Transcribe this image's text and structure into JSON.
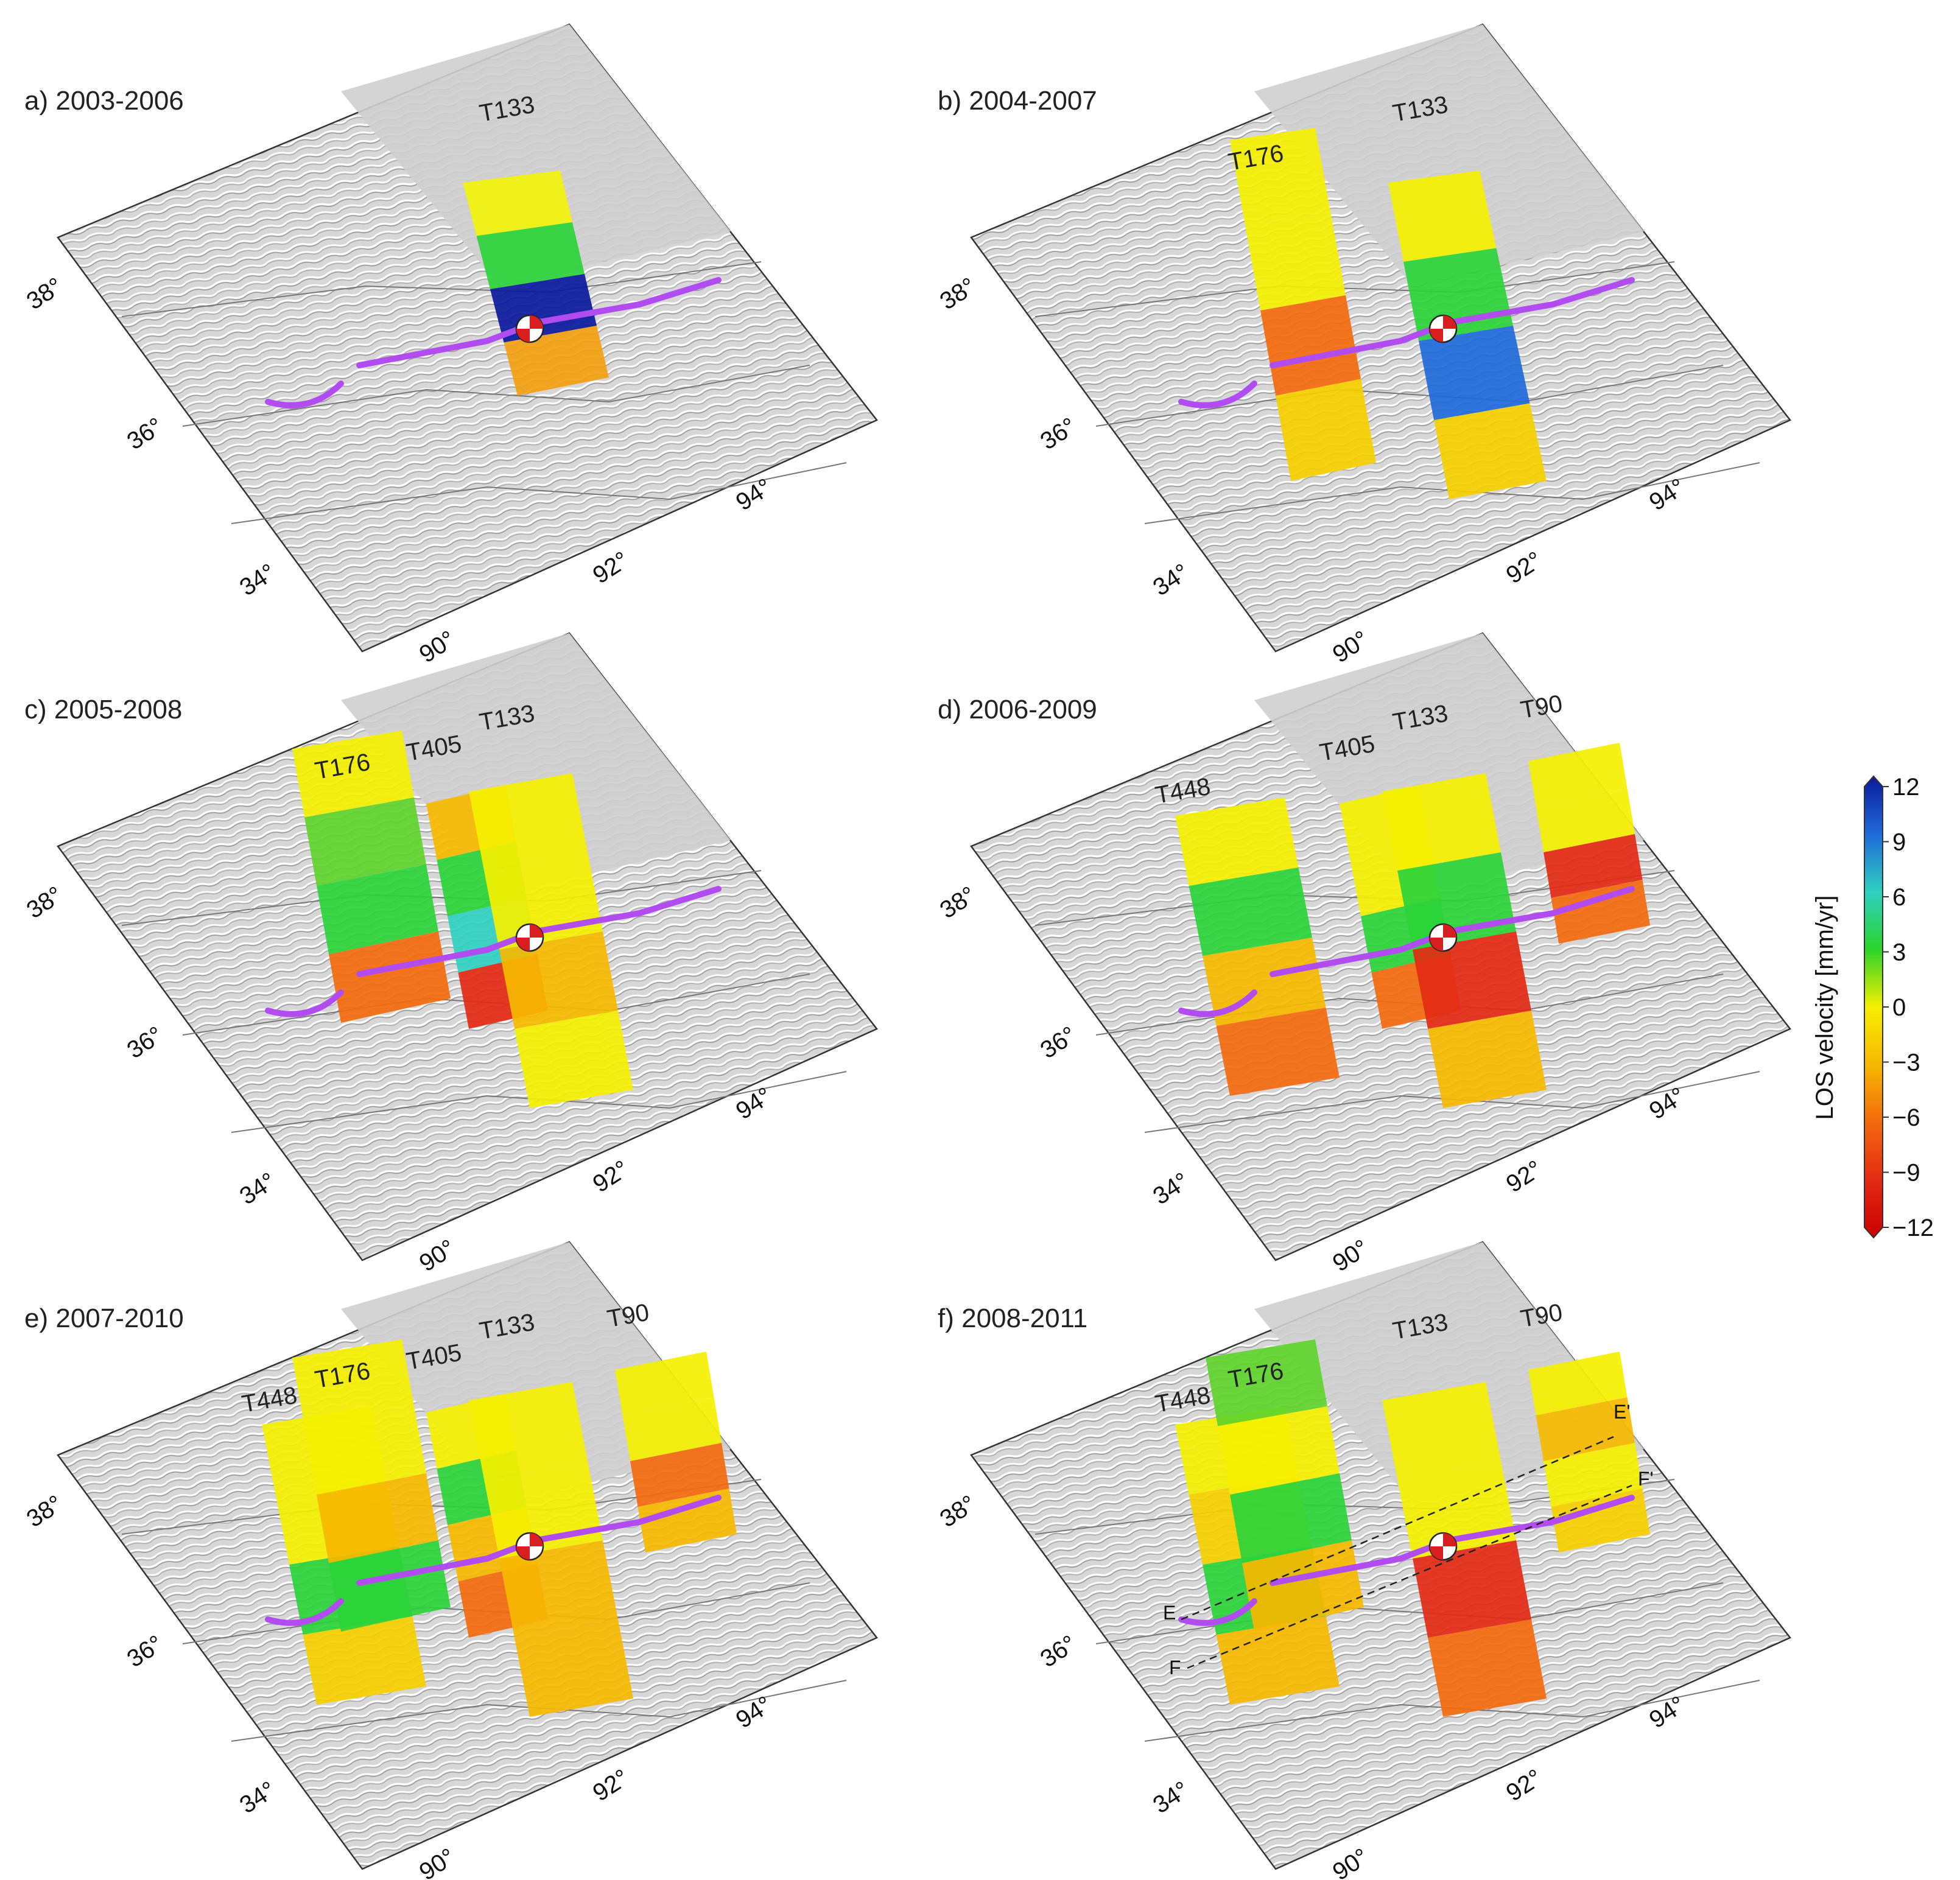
{
  "colors": {
    "fault_trace": "#b14cf0",
    "frame_border": "#333333",
    "terrain_base": "#d9d9d9",
    "plateau": "#cfcfcf"
  },
  "colorbar": {
    "title": "LOS velocity [mm/yr]",
    "ticks": [
      "12",
      "9",
      "6",
      "3",
      "0",
      "−3",
      "−6",
      "−9",
      "−12"
    ],
    "range": [
      -12,
      12
    ],
    "stops": [
      "#0a1a9c",
      "#1f6ad9",
      "#2fd0c0",
      "#2bd42b",
      "#f5f000",
      "#f6b800",
      "#f36a0e",
      "#e32a13",
      "#cc0000"
    ]
  },
  "axis_labels": {
    "lat": [
      "38°",
      "36°",
      "34°"
    ],
    "lon": [
      "90°",
      "92°",
      "94°"
    ]
  },
  "panels": [
    {
      "title": "a) 2003-2006",
      "tracks": [
        {
          "label": "T133",
          "palette": [
            "#f2f20a",
            "#2bd43a",
            "#0a1a9c",
            "#f2a010"
          ]
        }
      ]
    },
    {
      "title": "b) 2004-2007",
      "tracks": [
        {
          "label": "T176",
          "palette": [
            "#f5f000",
            "#f5f000",
            "#f36a0e",
            "#f5d000"
          ]
        },
        {
          "label": "T133",
          "palette": [
            "#f5f000",
            "#2bd43a",
            "#1f6ad9",
            "#f5d000"
          ]
        }
      ]
    },
    {
      "title": "c) 2005-2008",
      "tracks": [
        {
          "label": "T176",
          "palette": [
            "#f5f000",
            "#5fd42b",
            "#2bd43a",
            "#f36a0e"
          ]
        },
        {
          "label": "T405",
          "palette": [
            "#f6b800",
            "#2bd43a",
            "#2fd0c0",
            "#e32a13"
          ]
        },
        {
          "label": "T133",
          "palette": [
            "#f5f000",
            "#f5f000",
            "#f6b800",
            "#f5f000"
          ]
        }
      ]
    },
    {
      "title": "d) 2006-2009",
      "tracks": [
        {
          "label": "T448",
          "palette": [
            "#f5f000",
            "#2bd43a",
            "#f6b800",
            "#f36a0e"
          ]
        },
        {
          "label": "T405",
          "palette": [
            "#f5f000",
            "#f5f000",
            "#2bd43a",
            "#f36a0e"
          ]
        },
        {
          "label": "T133",
          "palette": [
            "#f5f000",
            "#2bd43a",
            "#e32a13",
            "#f6b800"
          ]
        },
        {
          "label": "T90",
          "palette": [
            "#f5f000",
            "#f5f000",
            "#e32a13",
            "#f36a0e"
          ]
        }
      ]
    },
    {
      "title": "e) 2007-2010",
      "tracks": [
        {
          "label": "T448",
          "palette": [
            "#f5f000",
            "#f5f000",
            "#2bd43a",
            "#f5d000"
          ]
        },
        {
          "label": "T176",
          "palette": [
            "#f5f000",
            "#f5f000",
            "#f6b800",
            "#2bd43a"
          ]
        },
        {
          "label": "T405",
          "palette": [
            "#f5f000",
            "#2bd43a",
            "#f6b800",
            "#f36a0e"
          ]
        },
        {
          "label": "T133",
          "palette": [
            "#f5f000",
            "#f5f000",
            "#f6b800",
            "#f6b800"
          ]
        },
        {
          "label": "T90",
          "palette": [
            "#f5f000",
            "#f5f000",
            "#f36a0e",
            "#f6b800"
          ]
        }
      ]
    },
    {
      "title": "f) 2008-2011",
      "tracks": [
        {
          "label": "T448",
          "palette": [
            "#f5f000",
            "#f5d000",
            "#2bd43a",
            "#f6b800"
          ]
        },
        {
          "label": "T176",
          "palette": [
            "#5fd42b",
            "#f5f000",
            "#2bd43a",
            "#f6b800"
          ]
        },
        {
          "label": "T133",
          "palette": [
            "#f5f000",
            "#f5f000",
            "#e32a13",
            "#f36a0e"
          ]
        },
        {
          "label": "T90",
          "palette": [
            "#f5f000",
            "#f6b800",
            "#f5f000",
            "#f5d000"
          ]
        }
      ],
      "profiles": [
        "E",
        "E'",
        "F",
        "F'"
      ]
    }
  ]
}
